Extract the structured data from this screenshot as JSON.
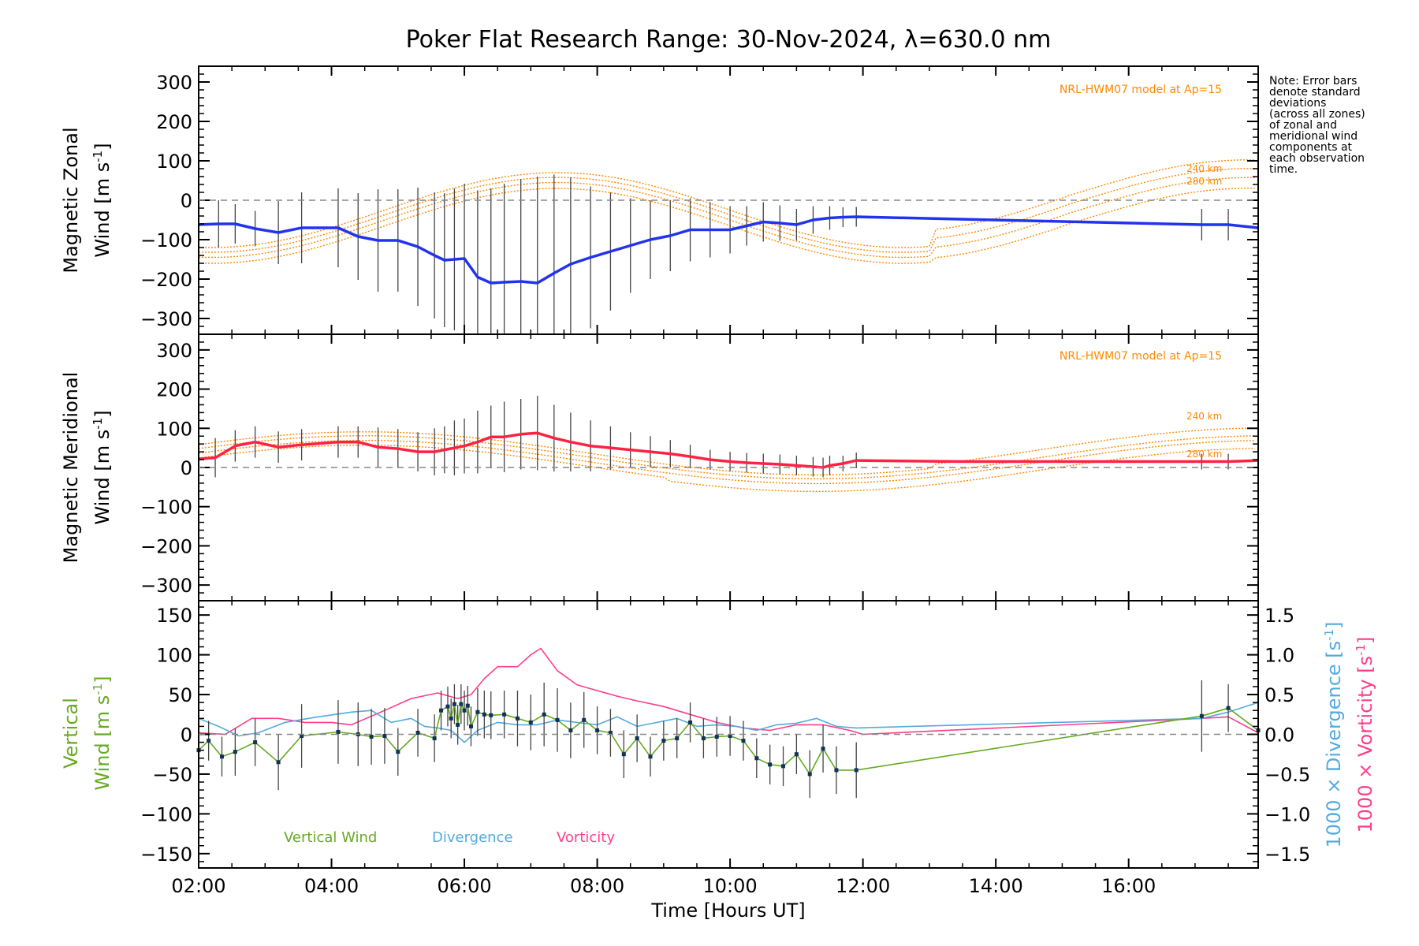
{
  "chart_data": {
    "type": "line",
    "title": "Poker Flat Research Range: 30-Nov-2024, λ=630.0 nm",
    "xlabel": "Time [Hours UT]",
    "x_range_hours": [
      2.0,
      17.95
    ],
    "x_ticks": [
      {
        "h": 2,
        "label": "02:00"
      },
      {
        "h": 4,
        "label": "04:00"
      },
      {
        "h": 6,
        "label": "06:00"
      },
      {
        "h": 8,
        "label": "08:00"
      },
      {
        "h": 10,
        "label": "10:00"
      },
      {
        "h": 12,
        "label": "12:00"
      },
      {
        "h": 14,
        "label": "14:00"
      },
      {
        "h": 16,
        "label": "16:00"
      }
    ],
    "note": [
      "Note: Error bars",
      "denote standard",
      "deviations",
      "(across all zones)",
      "of zonal and",
      "meridional wind",
      "components at",
      "each observation",
      "time."
    ],
    "colors": {
      "zonal": "#2233ee",
      "meridional": "#ff2244",
      "vertical": "#66aa22",
      "divergence": "#55aadd",
      "vorticity": "#ff3d8b",
      "model": "#ff8800",
      "errorbar": "#444444",
      "zero": "#888888"
    },
    "zonal": {
      "ylabel_1": "Magnetic Zonal",
      "ylabel_2": "Wind [m s",
      "ylabel_sup": "-1",
      "ylabel_end": "]",
      "ylim": [
        -340,
        340
      ],
      "y_ticks": [
        300,
        200,
        100,
        0,
        -100,
        -200,
        -300
      ],
      "y_tick_labels": [
        "300",
        "200",
        "100",
        "0",
        "−100",
        "−200",
        "−300"
      ],
      "model_label": "NRL-HWM07 model at Ap=15",
      "alt_labels": [
        "240 km",
        "280 km"
      ],
      "x": [
        2.0,
        2.3,
        2.55,
        2.85,
        3.2,
        3.55,
        4.1,
        4.4,
        4.7,
        5.0,
        5.3,
        5.55,
        5.7,
        5.85,
        6.0,
        6.2,
        6.4,
        6.6,
        6.85,
        7.1,
        7.35,
        7.6,
        7.9,
        8.2,
        8.5,
        8.8,
        9.1,
        9.4,
        9.7,
        10.0,
        10.25,
        10.5,
        10.75,
        11.0,
        11.25,
        11.5,
        11.7,
        11.9,
        17.1,
        17.5,
        17.95
      ],
      "values": [
        -62,
        -60,
        -60,
        -72,
        -82,
        -70,
        -70,
        -92,
        -102,
        -102,
        -118,
        -140,
        -152,
        -150,
        -148,
        -195,
        -210,
        -208,
        -206,
        -210,
        -185,
        -162,
        -145,
        -130,
        -115,
        -100,
        -90,
        -75,
        -75,
        -75,
        -65,
        -55,
        -58,
        -62,
        -50,
        -45,
        -43,
        -42,
        -62,
        -62,
        -70
      ],
      "errors": [
        50,
        60,
        50,
        45,
        80,
        90,
        100,
        110,
        130,
        130,
        150,
        160,
        170,
        180,
        190,
        220,
        240,
        250,
        260,
        270,
        250,
        220,
        180,
        150,
        120,
        100,
        90,
        80,
        70,
        60,
        50,
        50,
        45,
        40,
        35,
        30,
        25,
        25,
        40,
        40,
        40
      ]
    },
    "meridional": {
      "ylabel_1": "Magnetic Meridional",
      "ylabel_2": "Wind [m s",
      "ylabel_sup": "-1",
      "ylabel_end": "]",
      "ylim": [
        -340,
        340
      ],
      "y_ticks": [
        300,
        200,
        100,
        0,
        -100,
        -200,
        -300
      ],
      "y_tick_labels": [
        "300",
        "200",
        "100",
        "0",
        "−100",
        "−200",
        "−300"
      ],
      "model_label": "NRL-HWM07 model at Ap=15",
      "alt_labels": [
        "240 km",
        "280 km"
      ],
      "x": [
        2.0,
        2.25,
        2.55,
        2.85,
        3.2,
        3.55,
        4.1,
        4.4,
        4.7,
        5.0,
        5.3,
        5.55,
        5.7,
        5.85,
        6.0,
        6.2,
        6.4,
        6.6,
        6.85,
        7.1,
        7.35,
        7.6,
        7.9,
        8.2,
        8.5,
        8.8,
        9.1,
        9.4,
        9.7,
        10.0,
        10.25,
        10.5,
        10.75,
        11.0,
        11.25,
        11.4,
        11.5,
        11.7,
        11.9,
        13.5,
        17.1,
        17.5,
        17.95
      ],
      "values": [
        22,
        25,
        55,
        65,
        52,
        58,
        65,
        65,
        52,
        48,
        40,
        40,
        45,
        50,
        55,
        65,
        78,
        78,
        85,
        88,
        75,
        65,
        55,
        50,
        45,
        40,
        35,
        28,
        20,
        15,
        12,
        10,
        8,
        5,
        2,
        0,
        5,
        10,
        18,
        15,
        15,
        15,
        18
      ],
      "errors": [
        40,
        50,
        40,
        40,
        40,
        40,
        40,
        40,
        50,
        50,
        50,
        60,
        60,
        70,
        70,
        80,
        80,
        90,
        90,
        95,
        85,
        75,
        65,
        55,
        45,
        40,
        35,
        30,
        25,
        25,
        25,
        25,
        25,
        25,
        25,
        25,
        25,
        20,
        20,
        0,
        20,
        20,
        20
      ]
    },
    "vertical": {
      "ylabel_1": "Vertical",
      "ylabel_2": "Wind [m s",
      "ylabel_sup": "-1",
      "ylabel_end": "]",
      "ylim": [
        -168,
        168
      ],
      "y_ticks": [
        150,
        100,
        50,
        0,
        -50,
        -100,
        -150
      ],
      "y_tick_labels": [
        "150",
        "100",
        "50",
        "0",
        "−50",
        "−100",
        "−150"
      ],
      "right_ylim": [
        -1.68,
        1.68
      ],
      "right_ticks": [
        1.5,
        1.0,
        0.5,
        0.0,
        -0.5,
        -1.0,
        -1.5
      ],
      "right_tick_labels": [
        "1.5",
        "1.0",
        "0.5",
        "0.0",
        "−0.5",
        "−1.0",
        "−1.5"
      ],
      "right_label_div": "1000 × Divergence [s",
      "right_label_vort": "1000 × Vorticity [s",
      "right_label_sup": "-1",
      "right_label_end": "]",
      "legend": [
        "Vertical Wind",
        "Divergence",
        "Vorticity"
      ],
      "wind_x": [
        2.0,
        2.15,
        2.35,
        2.55,
        2.85,
        3.2,
        3.55,
        4.1,
        4.4,
        4.6,
        4.8,
        5.0,
        5.3,
        5.55,
        5.65,
        5.75,
        5.8,
        5.85,
        5.9,
        5.95,
        6.0,
        6.05,
        6.1,
        6.2,
        6.3,
        6.4,
        6.6,
        6.8,
        7.0,
        7.2,
        7.4,
        7.6,
        7.8,
        8.0,
        8.2,
        8.4,
        8.6,
        8.8,
        9.0,
        9.2,
        9.4,
        9.6,
        9.8,
        10.0,
        10.2,
        10.4,
        10.6,
        10.8,
        11.0,
        11.2,
        11.4,
        11.6,
        11.9,
        17.1,
        17.5,
        17.95
      ],
      "wind": [
        -20,
        -8,
        -28,
        -22,
        -10,
        -35,
        -2,
        3,
        0,
        -3,
        -2,
        -22,
        2,
        -5,
        30,
        35,
        20,
        38,
        12,
        38,
        30,
        36,
        10,
        28,
        25,
        24,
        25,
        20,
        15,
        25,
        18,
        5,
        18,
        5,
        2,
        -25,
        -5,
        -28,
        -8,
        -5,
        15,
        -5,
        -3,
        -2,
        -8,
        -30,
        -38,
        -40,
        -25,
        -50,
        -18,
        -45,
        -45,
        23,
        33,
        5
      ],
      "wind_err": [
        30,
        25,
        25,
        30,
        30,
        35,
        40,
        40,
        40,
        35,
        35,
        30,
        30,
        30,
        25,
        25,
        25,
        25,
        25,
        25,
        25,
        25,
        25,
        30,
        30,
        30,
        30,
        35,
        35,
        40,
        40,
        35,
        35,
        30,
        30,
        30,
        30,
        25,
        25,
        25,
        25,
        25,
        25,
        25,
        25,
        25,
        25,
        25,
        25,
        30,
        30,
        30,
        35,
        45,
        30,
        25
      ],
      "div_x": [
        2.0,
        2.3,
        2.6,
        2.9,
        3.3,
        3.8,
        4.3,
        4.6,
        4.9,
        5.2,
        5.4,
        5.6,
        5.8,
        6.0,
        6.2,
        6.5,
        6.8,
        7.1,
        7.4,
        7.7,
        8.0,
        8.3,
        8.6,
        8.9,
        9.2,
        9.5,
        9.8,
        10.1,
        10.4,
        10.7,
        11.0,
        11.3,
        11.6,
        11.9,
        17.1,
        17.5,
        17.95
      ],
      "divergence": [
        0.2,
        0.1,
        -0.02,
        0.02,
        0.15,
        0.22,
        0.28,
        0.3,
        0.15,
        0.2,
        0.1,
        0.08,
        0.05,
        -0.1,
        0.05,
        0.15,
        0.12,
        0.12,
        0.18,
        0.15,
        0.12,
        0.22,
        0.1,
        0.15,
        0.2,
        0.1,
        0.12,
        0.1,
        0.05,
        0.12,
        0.14,
        0.2,
        0.1,
        0.08,
        0.2,
        0.28,
        0.4
      ],
      "vort_x": [
        2.0,
        2.4,
        2.8,
        3.2,
        3.6,
        4.0,
        4.3,
        4.8,
        5.2,
        5.6,
        5.9,
        6.1,
        6.3,
        6.5,
        6.8,
        7.0,
        7.15,
        7.4,
        7.7,
        8.0,
        8.3,
        8.6,
        9.0,
        9.4,
        9.8,
        10.2,
        10.6,
        11.0,
        11.4,
        11.8,
        12.0,
        17.1,
        17.5,
        17.95
      ],
      "vorticity": [
        0.02,
        0.0,
        0.2,
        0.2,
        0.15,
        0.15,
        0.12,
        0.3,
        0.45,
        0.52,
        0.45,
        0.5,
        0.7,
        0.85,
        0.85,
        1.0,
        1.08,
        0.8,
        0.62,
        0.55,
        0.48,
        0.42,
        0.35,
        0.25,
        0.15,
        0.08,
        0.05,
        0.12,
        0.12,
        0.05,
        0.0,
        0.2,
        0.22,
        0.02
      ]
    }
  }
}
